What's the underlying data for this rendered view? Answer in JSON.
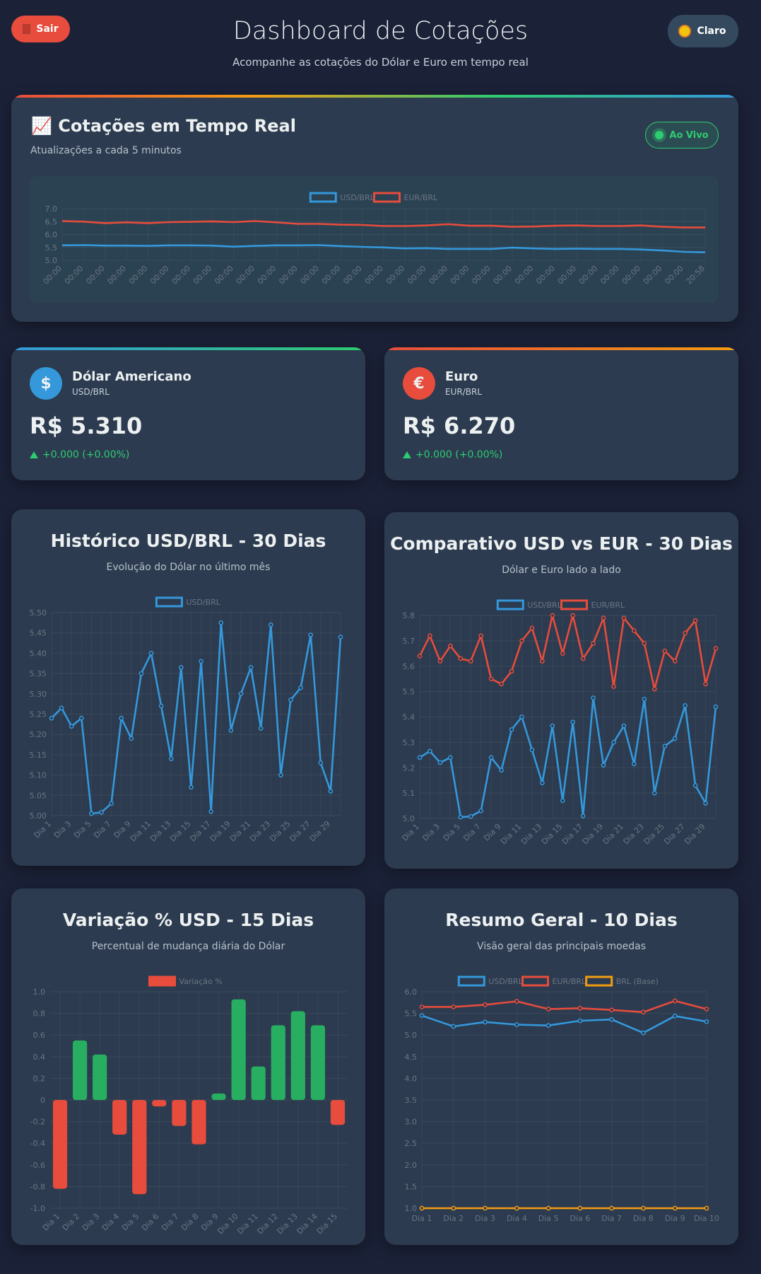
{
  "header": {
    "logout": "Sair",
    "title": "Dashboard de Cotações",
    "subtitle": "Acompanhe as cotações do Dólar e Euro em tempo real",
    "theme": "Claro"
  },
  "realtime": {
    "title": "📈 Cotações em Tempo Real",
    "subtitle": "Atualizações a cada 5 minutos",
    "status": "Ao Vivo"
  },
  "cards": [
    {
      "icon": "$",
      "name": "Dólar Americano",
      "pair": "USD/BRL",
      "price": "R$ 5.310",
      "change": "+0.000 (+0.00%)"
    },
    {
      "icon": "€",
      "name": "Euro",
      "pair": "EUR/BRL",
      "price": "R$ 6.270",
      "change": "+0.000 (+0.00%)"
    }
  ],
  "chart_data": [
    {
      "type": "line",
      "markers": false,
      "grid": true,
      "legend": "top",
      "categories": [
        "00:00",
        "00:00",
        "00:00",
        "00:00",
        "00:00",
        "00:00",
        "00:00",
        "00:00",
        "00:00",
        "00:00",
        "00:00",
        "00:00",
        "00:00",
        "00:00",
        "00:00",
        "00:00",
        "00:00",
        "00:00",
        "00:00",
        "00:00",
        "00:00",
        "00:00",
        "00:00",
        "00:00",
        "00:00",
        "00:00",
        "00:00",
        "00:00",
        "00:00",
        "00:00",
        "20:58"
      ],
      "series": [
        {
          "name": "USD/BRL",
          "color": "#3498db",
          "values": [
            5.58,
            5.59,
            5.57,
            5.57,
            5.56,
            5.58,
            5.58,
            5.57,
            5.53,
            5.56,
            5.58,
            5.58,
            5.59,
            5.55,
            5.52,
            5.5,
            5.46,
            5.47,
            5.44,
            5.44,
            5.44,
            5.49,
            5.46,
            5.44,
            5.45,
            5.44,
            5.44,
            5.42,
            5.38,
            5.33,
            5.31
          ]
        },
        {
          "name": "EUR/BRL",
          "color": "#e74c3c",
          "values": [
            6.52,
            6.5,
            6.44,
            6.47,
            6.44,
            6.48,
            6.49,
            6.51,
            6.48,
            6.52,
            6.47,
            6.41,
            6.41,
            6.38,
            6.37,
            6.33,
            6.33,
            6.35,
            6.4,
            6.34,
            6.34,
            6.3,
            6.31,
            6.34,
            6.35,
            6.33,
            6.33,
            6.35,
            6.3,
            6.27,
            6.27
          ]
        }
      ],
      "ylim": [
        5,
        7
      ],
      "yticks": [
        {
          "value": 5,
          "label": "5.0"
        },
        5.5,
        {
          "value": 6,
          "label": "6.0"
        },
        6.5,
        {
          "value": 7,
          "label": "7.0"
        }
      ]
    },
    {
      "type": "line",
      "markers": true,
      "grid": true,
      "legend": "top",
      "title": "Histórico USD/BRL - 30 Dias",
      "subtitle": "Evolução do Dólar no último mês",
      "categories": [
        "Dia 1",
        null,
        "Dia 3",
        null,
        "Dia 5",
        null,
        "Dia 7",
        null,
        "Dia 9",
        null,
        "Dia 11",
        null,
        "Dia 13",
        null,
        "Dia 15",
        null,
        "Dia 17",
        null,
        "Dia 19",
        null,
        "Dia 21",
        null,
        "Dia 23",
        null,
        "Dia 25",
        null,
        "Dia 27",
        null,
        "Dia 29",
        null
      ],
      "series": [
        {
          "name": "USD/BRL",
          "color": "#3498db",
          "values": [
            5.24,
            5.265,
            5.22,
            5.24,
            5.005,
            5.008,
            5.03,
            5.24,
            5.19,
            5.35,
            5.4,
            5.27,
            5.14,
            5.365,
            5.07,
            5.38,
            5.01,
            5.475,
            5.21,
            5.3,
            5.365,
            5.215,
            5.47,
            5.1,
            5.285,
            5.315,
            5.445,
            5.13,
            5.06,
            5.44
          ]
        }
      ],
      "ylim": [
        5,
        5.5
      ],
      "yticks": [
        {
          "value": 5,
          "label": "5.00"
        },
        5.05,
        {
          "value": 5.1,
          "label": "5.10"
        },
        5.15,
        {
          "value": 5.2,
          "label": "5.20"
        },
        5.25,
        {
          "value": 5.3,
          "label": "5.30"
        },
        5.35,
        {
          "value": 5.4,
          "label": "5.40"
        },
        5.45,
        {
          "value": 5.5,
          "label": "5.50"
        }
      ]
    },
    {
      "type": "line",
      "markers": true,
      "grid": true,
      "legend": "top",
      "title": "Comparativo USD vs EUR - 30 Dias",
      "subtitle": "Dólar e Euro lado a lado",
      "categories": [
        "Dia 1",
        null,
        "Dia 3",
        null,
        "Dia 5",
        null,
        "Dia 7",
        null,
        "Dia 9",
        null,
        "Dia 11",
        null,
        "Dia 13",
        null,
        "Dia 15",
        null,
        "Dia 17",
        null,
        "Dia 19",
        null,
        "Dia 21",
        null,
        "Dia 23",
        null,
        "Dia 25",
        null,
        "Dia 27",
        null,
        "Dia 29",
        null
      ],
      "series": [
        {
          "name": "USD/BRL",
          "color": "#3498db",
          "values": [
            5.24,
            5.265,
            5.22,
            5.24,
            5.005,
            5.008,
            5.03,
            5.24,
            5.19,
            5.35,
            5.4,
            5.27,
            5.14,
            5.365,
            5.07,
            5.38,
            5.01,
            5.475,
            5.21,
            5.3,
            5.365,
            5.215,
            5.47,
            5.1,
            5.285,
            5.315,
            5.445,
            5.13,
            5.06,
            5.44
          ]
        },
        {
          "name": "EUR/BRL",
          "color": "#e74c3c",
          "values": [
            5.64,
            5.72,
            5.62,
            5.68,
            5.63,
            5.62,
            5.72,
            5.55,
            5.53,
            5.58,
            5.7,
            5.75,
            5.62,
            5.8,
            5.65,
            5.8,
            5.63,
            5.69,
            5.79,
            5.52,
            5.79,
            5.74,
            5.69,
            5.51,
            5.66,
            5.62,
            5.73,
            5.78,
            5.53,
            5.67
          ]
        }
      ],
      "ylim": [
        5,
        5.8
      ],
      "yticks": [
        {
          "value": 5,
          "label": "5.0"
        },
        5.1,
        5.2,
        5.3,
        5.4,
        5.5,
        5.6,
        5.7,
        5.8
      ]
    },
    {
      "type": "bar",
      "grid": true,
      "legend": "top",
      "title": "Variação % USD - 15 Dias",
      "subtitle": "Percentual de mudança diária do Dólar",
      "categories": [
        "Dia 1",
        "Dia 2",
        "Dia 3",
        "Dia 4",
        "Dia 5",
        "Dia 6",
        "Dia 7",
        "Dia 8",
        "Dia 9",
        "Dia 10",
        "Dia 11",
        "Dia 12",
        "Dia 13",
        "Dia 14",
        "Dia 15"
      ],
      "series": [
        {
          "name": "Variação %",
          "color": "#e74c3c",
          "positive_color": "#27ae60",
          "values": [
            -0.82,
            0.55,
            0.42,
            -0.32,
            -0.87,
            -0.06,
            -0.24,
            -0.41,
            0.06,
            0.93,
            0.31,
            0.69,
            0.82,
            0.69,
            -0.23
          ]
        }
      ],
      "ylim": [
        -1,
        1
      ],
      "yticks": [
        {
          "value": -1,
          "label": "-1.0"
        },
        -0.8,
        -0.6,
        -0.4,
        -0.2,
        0,
        0.2,
        0.4,
        0.6,
        0.8,
        {
          "value": 1,
          "label": "1.0"
        }
      ]
    },
    {
      "type": "line",
      "markers": true,
      "grid": true,
      "legend": "top",
      "title": "Resumo Geral - 10 Dias",
      "subtitle": "Visão geral das principais moedas",
      "categories": [
        "Dia 1",
        "Dia 2",
        "Dia 3",
        "Dia 4",
        "Dia 5",
        "Dia 6",
        "Dia 7",
        "Dia 8",
        "Dia 9",
        "Dia 10"
      ],
      "series": [
        {
          "name": "USD/BRL",
          "color": "#3498db",
          "values": [
            5.45,
            5.2,
            5.3,
            5.24,
            5.22,
            5.33,
            5.36,
            5.05,
            5.44,
            5.31
          ]
        },
        {
          "name": "EUR/BRL",
          "color": "#e74c3c",
          "values": [
            5.65,
            5.65,
            5.7,
            5.78,
            5.6,
            5.62,
            5.58,
            5.53,
            5.79,
            5.6
          ]
        },
        {
          "name": "BRL (Base)",
          "color": "#f39c12",
          "values": [
            1,
            1,
            1,
            1,
            1,
            1,
            1,
            1,
            1,
            1
          ]
        }
      ],
      "ylim": [
        1,
        6
      ],
      "yticks": [
        {
          "value": 1,
          "label": "1.0"
        },
        1.5,
        {
          "value": 2,
          "label": "2.0"
        },
        2.5,
        {
          "value": 3,
          "label": "3.0"
        },
        3.5,
        {
          "value": 4,
          "label": "4.0"
        },
        4.5,
        {
          "value": 5,
          "label": "5.0"
        },
        5.5,
        {
          "value": 6,
          "label": "6.0"
        }
      ]
    }
  ]
}
